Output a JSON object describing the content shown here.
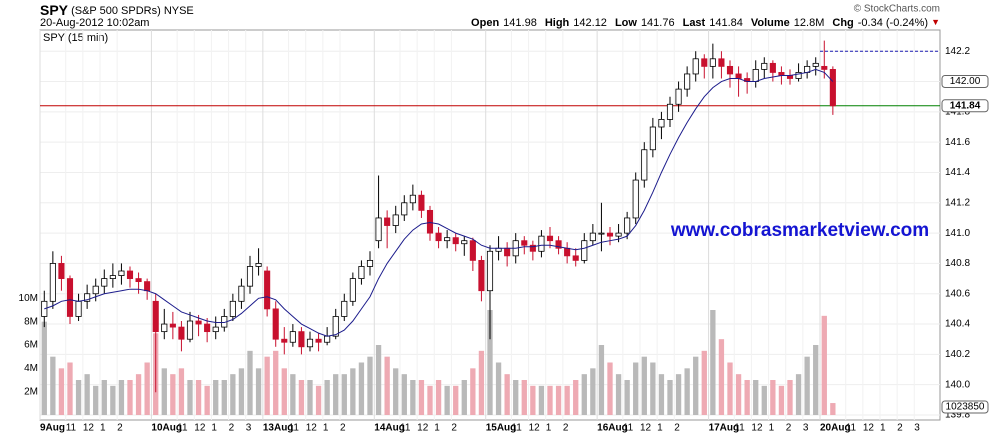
{
  "chart_data": {
    "type": "candlestick",
    "title": "SPY",
    "subtitle": "(S&P 500 SPDRs)",
    "exchange": "NYSE",
    "timestamp": "20-Aug-2012 10:02am",
    "credit": "© StockCharts.com",
    "panel_label": "SPY (15 min)",
    "watermark": "www.cobrasmarketview.com",
    "quote": [
      {
        "label": "Open",
        "value": "141.98"
      },
      {
        "label": "High",
        "value": "142.12"
      },
      {
        "label": "Low",
        "value": "141.76"
      },
      {
        "label": "Last",
        "value": "141.84"
      },
      {
        "label": "Volume",
        "value": "12.8M"
      },
      {
        "label": "Chg",
        "value": "-0.34 (-0.24%)"
      }
    ],
    "change_arrow": "▼",
    "xlim": [
      0,
      210
    ],
    "xticks": [
      {
        "value": 0,
        "label": "9Aug"
      },
      {
        "value": 6,
        "label": "11"
      },
      {
        "value": 10,
        "label": "12"
      },
      {
        "value": 14,
        "label": "1"
      },
      {
        "value": 18,
        "label": "2"
      },
      {
        "value": 26,
        "label": "10Aug"
      },
      {
        "value": 32,
        "label": "11"
      },
      {
        "value": 36,
        "label": "12"
      },
      {
        "value": 40,
        "label": "1"
      },
      {
        "value": 44,
        "label": "2"
      },
      {
        "value": 48,
        "label": "3"
      },
      {
        "value": 52,
        "label": "13Aug"
      },
      {
        "value": 58,
        "label": "11"
      },
      {
        "value": 62,
        "label": "12"
      },
      {
        "value": 66,
        "label": "1"
      },
      {
        "value": 70,
        "label": "2"
      },
      {
        "value": 78,
        "label": "14Aug"
      },
      {
        "value": 84,
        "label": "11"
      },
      {
        "value": 88,
        "label": "12"
      },
      {
        "value": 92,
        "label": "1"
      },
      {
        "value": 96,
        "label": "2"
      },
      {
        "value": 104,
        "label": "15Aug"
      },
      {
        "value": 110,
        "label": "11"
      },
      {
        "value": 114,
        "label": "12"
      },
      {
        "value": 118,
        "label": "1"
      },
      {
        "value": 122,
        "label": "2"
      },
      {
        "value": 130,
        "label": "16Aug"
      },
      {
        "value": 136,
        "label": "11"
      },
      {
        "value": 140,
        "label": "12"
      },
      {
        "value": 144,
        "label": "1"
      },
      {
        "value": 148,
        "label": "2"
      },
      {
        "value": 156,
        "label": "17Aug"
      },
      {
        "value": 162,
        "label": "11"
      },
      {
        "value": 166,
        "label": "12"
      },
      {
        "value": 170,
        "label": "1"
      },
      {
        "value": 174,
        "label": "2"
      },
      {
        "value": 178,
        "label": "3"
      },
      {
        "value": 182,
        "label": "20Aug"
      },
      {
        "value": 188,
        "label": "11"
      },
      {
        "value": 192,
        "label": "12"
      },
      {
        "value": 196,
        "label": "1"
      },
      {
        "value": 200,
        "label": "2"
      },
      {
        "value": 204,
        "label": "3"
      }
    ],
    "ylim": [
      139.8,
      142.34
    ],
    "yticks": [
      139.8,
      {
        "value": 140,
        "label": "140.0"
      },
      140.2,
      140.4,
      140.6,
      140.8,
      {
        "value": 141,
        "label": "141.0"
      },
      141.2,
      141.4,
      141.6,
      141.8,
      {
        "value": 142,
        "label": "142.0"
      },
      142.2
    ],
    "y2lim": [
      0,
      33000000
    ],
    "y2ticks": [
      {
        "value": 2000000,
        "label": "2M"
      },
      {
        "value": 4000000,
        "label": "4M"
      },
      {
        "value": 6000000,
        "label": "6M"
      },
      {
        "value": 8000000,
        "label": "8M"
      },
      {
        "value": 10000000,
        "label": "10M"
      }
    ],
    "grid": true,
    "up_color": "#000000",
    "down_color": "#c8102e",
    "volume_up_color": "#b9b9b9",
    "volume_down_color": "#eeaab3",
    "ma_color": "#1c1c8c",
    "last_line_color": "#c00000",
    "last_line_recent_color": "#008000",
    "dashed_level": 142.2,
    "dashed_color": "#1c1cb0",
    "x": [
      1,
      3,
      5,
      7,
      9,
      11,
      13,
      15,
      17,
      19,
      21,
      23,
      25,
      27,
      29,
      31,
      33,
      35,
      37,
      39,
      41,
      43,
      45,
      47,
      49,
      51,
      53,
      55,
      57,
      59,
      61,
      63,
      65,
      67,
      69,
      71,
      73,
      75,
      77,
      79,
      81,
      83,
      85,
      87,
      89,
      91,
      93,
      95,
      97,
      99,
      101,
      103,
      105,
      107,
      109,
      111,
      113,
      115,
      117,
      119,
      121,
      123,
      125,
      127,
      129,
      131,
      133,
      135,
      137,
      139,
      141,
      143,
      145,
      147,
      149,
      151,
      153,
      155,
      157,
      159,
      161,
      163,
      165,
      167,
      169,
      171,
      173,
      175,
      177,
      179,
      181,
      183,
      185
    ],
    "ohlc": [
      [
        140.45,
        140.62,
        140.38,
        140.55
      ],
      [
        140.55,
        140.88,
        140.5,
        140.8
      ],
      [
        140.8,
        140.85,
        140.62,
        140.7
      ],
      [
        140.7,
        140.72,
        140.4,
        140.45
      ],
      [
        140.45,
        140.6,
        140.42,
        140.55
      ],
      [
        140.55,
        140.66,
        140.5,
        140.6
      ],
      [
        140.6,
        140.7,
        140.55,
        140.65
      ],
      [
        140.65,
        140.76,
        140.6,
        140.7
      ],
      [
        140.7,
        140.8,
        140.64,
        140.72
      ],
      [
        140.72,
        140.8,
        140.66,
        140.75
      ],
      [
        140.75,
        140.78,
        140.64,
        140.7
      ],
      [
        140.7,
        140.74,
        140.6,
        140.68
      ],
      [
        140.68,
        140.7,
        140.56,
        140.62
      ],
      [
        140.55,
        140.6,
        139.95,
        140.35
      ],
      [
        140.35,
        140.5,
        140.3,
        140.4
      ],
      [
        140.4,
        140.48,
        140.3,
        140.38
      ],
      [
        140.38,
        140.42,
        140.22,
        140.3
      ],
      [
        140.3,
        140.48,
        140.28,
        140.42
      ],
      [
        140.42,
        140.46,
        140.32,
        140.4
      ],
      [
        140.4,
        140.44,
        140.28,
        140.35
      ],
      [
        140.35,
        140.45,
        140.3,
        140.38
      ],
      [
        140.38,
        140.5,
        140.35,
        140.45
      ],
      [
        140.45,
        140.6,
        140.42,
        140.55
      ],
      [
        140.55,
        140.7,
        140.5,
        140.65
      ],
      [
        140.65,
        140.85,
        140.6,
        140.78
      ],
      [
        140.78,
        140.9,
        140.72,
        140.8
      ],
      [
        140.75,
        140.78,
        140.45,
        140.5
      ],
      [
        140.5,
        140.55,
        140.25,
        140.3
      ],
      [
        140.3,
        140.38,
        140.2,
        140.28
      ],
      [
        140.28,
        140.4,
        140.25,
        140.35
      ],
      [
        140.35,
        140.38,
        140.2,
        140.25
      ],
      [
        140.25,
        140.35,
        140.22,
        140.3
      ],
      [
        140.3,
        140.34,
        140.22,
        140.28
      ],
      [
        140.28,
        140.38,
        140.26,
        140.32
      ],
      [
        140.32,
        140.5,
        140.3,
        140.45
      ],
      [
        140.45,
        140.6,
        140.42,
        140.55
      ],
      [
        140.55,
        140.74,
        140.52,
        140.7
      ],
      [
        140.7,
        140.82,
        140.66,
        140.78
      ],
      [
        140.78,
        140.88,
        140.72,
        140.82
      ],
      [
        140.95,
        141.38,
        140.9,
        141.1
      ],
      [
        141.1,
        141.15,
        140.9,
        141.05
      ],
      [
        141.05,
        141.18,
        141.0,
        141.12
      ],
      [
        141.12,
        141.25,
        141.08,
        141.2
      ],
      [
        141.2,
        141.32,
        141.15,
        141.25
      ],
      [
        141.25,
        141.28,
        141.1,
        141.15
      ],
      [
        141.15,
        141.18,
        140.95,
        141.0
      ],
      [
        141.0,
        141.04,
        140.9,
        140.95
      ],
      [
        140.95,
        141.02,
        140.9,
        140.97
      ],
      [
        140.97,
        141.0,
        140.88,
        140.93
      ],
      [
        140.93,
        140.98,
        140.85,
        140.95
      ],
      [
        140.95,
        140.97,
        140.75,
        140.82
      ],
      [
        140.82,
        140.85,
        140.55,
        140.62
      ],
      [
        140.62,
        140.92,
        140.3,
        140.88
      ],
      [
        140.88,
        140.98,
        140.82,
        140.9
      ],
      [
        140.9,
        140.94,
        140.78,
        140.85
      ],
      [
        140.85,
        141.0,
        140.8,
        140.95
      ],
      [
        140.95,
        140.98,
        140.86,
        140.92
      ],
      [
        140.92,
        140.95,
        140.82,
        140.88
      ],
      [
        140.88,
        141.02,
        140.84,
        140.98
      ],
      [
        140.98,
        141.04,
        140.9,
        140.95
      ],
      [
        140.95,
        140.98,
        140.86,
        140.9
      ],
      [
        140.9,
        140.94,
        140.8,
        140.85
      ],
      [
        140.85,
        140.9,
        140.78,
        140.82
      ],
      [
        140.82,
        141.0,
        140.8,
        140.95
      ],
      [
        140.95,
        141.06,
        140.92,
        141.0
      ],
      [
        141.0,
        141.2,
        140.88,
        141.0
      ],
      [
        141.0,
        141.04,
        140.92,
        140.98
      ],
      [
        140.98,
        141.06,
        140.94,
        141.0
      ],
      [
        141.0,
        141.14,
        140.96,
        141.1
      ],
      [
        141.1,
        141.4,
        141.06,
        141.35
      ],
      [
        141.35,
        141.6,
        141.3,
        141.55
      ],
      [
        141.55,
        141.76,
        141.5,
        141.7
      ],
      [
        141.7,
        141.8,
        141.62,
        141.75
      ],
      [
        141.75,
        141.9,
        141.7,
        141.85
      ],
      [
        141.85,
        142.0,
        141.8,
        141.95
      ],
      [
        141.95,
        142.1,
        141.9,
        142.05
      ],
      [
        142.05,
        142.2,
        142.0,
        142.15
      ],
      [
        142.15,
        142.18,
        142.02,
        142.1
      ],
      [
        142.1,
        142.25,
        142.02,
        142.15
      ],
      [
        142.15,
        142.2,
        142.02,
        142.1
      ],
      [
        142.1,
        142.14,
        141.96,
        142.05
      ],
      [
        142.05,
        142.1,
        141.9,
        142.02
      ],
      [
        142.02,
        142.06,
        141.92,
        142.0
      ],
      [
        142.0,
        142.14,
        141.96,
        142.08
      ],
      [
        142.08,
        142.16,
        142.02,
        142.12
      ],
      [
        142.12,
        142.14,
        142.0,
        142.06
      ],
      [
        142.06,
        142.1,
        141.98,
        142.04
      ],
      [
        142.04,
        142.08,
        141.98,
        142.02
      ],
      [
        142.02,
        142.12,
        142.0,
        142.06
      ],
      [
        142.06,
        142.14,
        142.02,
        142.1
      ],
      [
        142.1,
        142.16,
        142.04,
        142.12
      ],
      [
        142.1,
        142.27,
        142.02,
        142.08
      ],
      [
        142.08,
        142.1,
        141.78,
        141.84
      ]
    ],
    "volume": [
      8000000,
      5000000,
      4000000,
      4500000,
      3000000,
      3500000,
      2500000,
      3000000,
      2500000,
      3000000,
      3000000,
      3500000,
      4500000,
      7000000,
      4000000,
      3500000,
      4000000,
      3000000,
      3000000,
      2500000,
      3000000,
      3000000,
      3500000,
      4000000,
      5500000,
      4000000,
      5000000,
      5500000,
      4000000,
      3500000,
      3000000,
      3000000,
      2500000,
      3000000,
      3500000,
      3500000,
      4000000,
      4500000,
      5000000,
      6000000,
      5000000,
      4000000,
      3500000,
      3000000,
      3000000,
      2500000,
      3000000,
      2500000,
      2500000,
      3000000,
      4000000,
      5500000,
      9000000,
      4500000,
      3500000,
      3000000,
      3000000,
      2500000,
      2500000,
      2500000,
      2500000,
      2500000,
      3000000,
      3500000,
      4000000,
      6000000,
      4500000,
      3500000,
      3000000,
      4500000,
      5000000,
      4500000,
      3500000,
      3000000,
      3500000,
      4000000,
      5000000,
      5500000,
      9000000,
      6500000,
      4500000,
      3500000,
      3000000,
      3000000,
      2500000,
      3000000,
      2500000,
      3000000,
      3500000,
      5000000,
      6000000,
      8500000,
      1023850
    ],
    "ma": [
      140.5,
      140.52,
      140.55,
      140.56,
      140.55,
      140.56,
      140.58,
      140.6,
      140.61,
      140.62,
      140.63,
      140.63,
      140.62,
      140.6,
      140.56,
      140.52,
      140.48,
      140.46,
      140.44,
      140.42,
      140.41,
      140.41,
      140.43,
      140.47,
      140.52,
      140.57,
      140.58,
      140.56,
      140.5,
      140.45,
      140.4,
      140.37,
      140.34,
      140.32,
      140.33,
      140.36,
      140.42,
      140.5,
      140.58,
      140.7,
      140.8,
      140.88,
      140.96,
      141.02,
      141.06,
      141.07,
      141.06,
      141.03,
      141.0,
      140.98,
      140.96,
      140.92,
      140.9,
      140.9,
      140.9,
      140.9,
      140.91,
      140.91,
      140.92,
      140.92,
      140.91,
      140.9,
      140.89,
      140.9,
      140.92,
      140.94,
      140.95,
      140.96,
      140.98,
      141.05,
      141.15,
      141.27,
      141.4,
      141.52,
      141.63,
      141.73,
      141.82,
      141.9,
      141.96,
      142.0,
      142.02,
      142.02,
      142.0,
      142.0,
      142.02,
      142.03,
      142.04,
      142.04,
      142.05,
      142.06,
      142.08,
      142.06,
      142.0
    ],
    "ma_last": {
      "value": 142.0,
      "label": "142.00"
    },
    "last": {
      "value": 141.84,
      "label": "141.84"
    },
    "last_volume": 1023850,
    "recent_start": 182
  }
}
